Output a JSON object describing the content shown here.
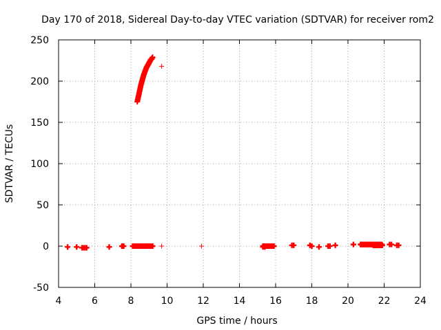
{
  "chart_data": {
    "type": "scatter",
    "title": "Day 170 of 2018, Sidereal Day-to-day VTEC variation (SDTVAR) for receiver rom2",
    "xlabel": "GPS time / hours",
    "ylabel": "SDTVAR / TECUs",
    "xlim": [
      4,
      24
    ],
    "ylim": [
      -50,
      250
    ],
    "xticks": [
      4,
      6,
      8,
      10,
      12,
      14,
      16,
      18,
      20,
      22,
      24
    ],
    "yticks": [
      -50,
      0,
      50,
      100,
      150,
      200,
      250
    ],
    "grid": true,
    "marker": "+",
    "color": "#ff0000",
    "series": [
      {
        "name": "SDTVAR",
        "rising_segment": {
          "x": [
            8.35,
            8.4,
            8.45,
            8.5,
            8.55,
            8.6,
            8.65,
            8.7,
            8.75,
            8.8,
            8.85,
            8.9,
            8.95,
            9.0,
            9.05,
            9.1,
            9.15,
            9.2
          ],
          "y": [
            175,
            180,
            185,
            190,
            195,
            199,
            203,
            207,
            210,
            213,
            216,
            218,
            220,
            222,
            224,
            226,
            227,
            229
          ]
        },
        "outliers": {
          "x": [
            9.7
          ],
          "y": [
            218
          ]
        },
        "near_zero": {
          "x": [
            4.5,
            5.0,
            5.3,
            5.4,
            5.5,
            5.55,
            6.8,
            7.5,
            7.55,
            7.6,
            8.1,
            8.2,
            8.3,
            8.4,
            8.5,
            8.6,
            8.7,
            8.8,
            8.9,
            9.0,
            9.1,
            9.2,
            9.7,
            11.9,
            15.3,
            15.4,
            15.5,
            15.6,
            15.7,
            15.8,
            15.9,
            16.9,
            17.0,
            17.9,
            18.0,
            18.4,
            18.9,
            19.0,
            19.3,
            20.3,
            20.7,
            20.8,
            20.9,
            21.0,
            21.1,
            21.2,
            21.3,
            21.4,
            21.5,
            21.6,
            21.7,
            21.8,
            21.9,
            22.3,
            22.4,
            22.7,
            22.8
          ],
          "y": [
            -1,
            -1,
            -2,
            -2,
            -2,
            -2,
            -1,
            0,
            0,
            0,
            0,
            0,
            0,
            0,
            0,
            0,
            0,
            0,
            0,
            0,
            0,
            0,
            0,
            0,
            -1,
            -1,
            0,
            0,
            0,
            0,
            0,
            1,
            1,
            1,
            0,
            -1,
            0,
            0,
            1,
            2,
            2,
            2,
            2,
            2,
            2,
            2,
            2,
            2,
            1,
            1,
            1,
            1,
            1,
            2,
            2,
            1,
            1
          ]
        }
      }
    ]
  }
}
